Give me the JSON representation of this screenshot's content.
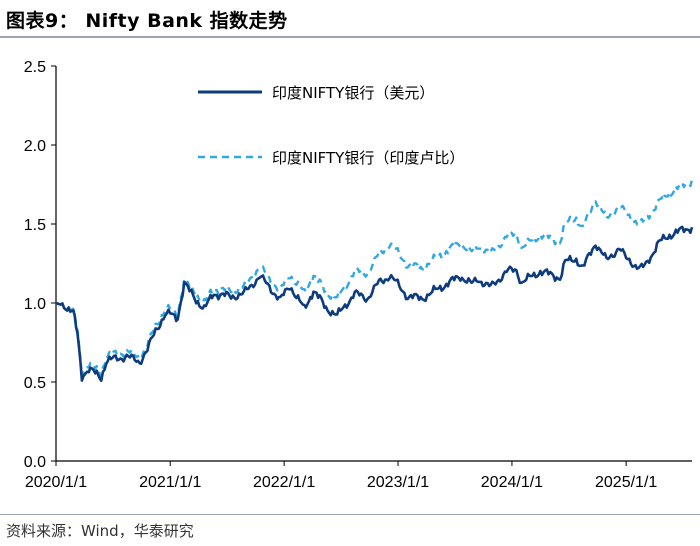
{
  "page_title": "图表9： Nifty Bank 指数走势",
  "source": "资料来源：Wind，华泰研究",
  "colors": {
    "usd": "#0d3b7e",
    "inr": "#33a8e0",
    "axis": "#000000"
  },
  "chart_data": {
    "type": "line",
    "title": "图表9： Nifty Bank 指数走势",
    "xlabel": "",
    "ylabel": "",
    "xlim": [
      "2020-01-01",
      "2025-07-31"
    ],
    "ylim": [
      0.0,
      2.5
    ],
    "y_ticks": [
      0.0,
      0.5,
      1.0,
      1.5,
      2.0,
      2.5
    ],
    "y_tick_labels": [
      "0.0",
      "0.5",
      "1.0",
      "1.5",
      "2.0",
      "2.5"
    ],
    "x_ticks": [
      "2020-01-01",
      "2021-01-01",
      "2022-01-01",
      "2023-01-01",
      "2024-01-01",
      "2025-01-01"
    ],
    "x_tick_labels": [
      "2020/1/1",
      "2021/1/1",
      "2022/1/1",
      "2023/1/1",
      "2024/1/1",
      "2025/1/1"
    ],
    "grid": false,
    "legend_position": "top-center",
    "series": [
      {
        "name": "印度NIFTY银行（美元）",
        "style": "solid",
        "points": [
          [
            "2020-01-01",
            1.0
          ],
          [
            "2020-02-01",
            0.98
          ],
          [
            "2020-02-25",
            0.94
          ],
          [
            "2020-03-10",
            0.8
          ],
          [
            "2020-03-24",
            0.54
          ],
          [
            "2020-04-15",
            0.58
          ],
          [
            "2020-05-01",
            0.56
          ],
          [
            "2020-05-25",
            0.53
          ],
          [
            "2020-06-10",
            0.63
          ],
          [
            "2020-07-10",
            0.65
          ],
          [
            "2020-08-15",
            0.66
          ],
          [
            "2020-09-25",
            0.63
          ],
          [
            "2020-10-20",
            0.7
          ],
          [
            "2020-11-15",
            0.83
          ],
          [
            "2020-12-15",
            0.92
          ],
          [
            "2021-01-01",
            0.93
          ],
          [
            "2021-01-25",
            0.91
          ],
          [
            "2021-02-15",
            1.12
          ],
          [
            "2021-03-10",
            1.06
          ],
          [
            "2021-04-20",
            0.96
          ],
          [
            "2021-05-20",
            1.06
          ],
          [
            "2021-07-15",
            1.04
          ],
          [
            "2021-08-25",
            1.06
          ],
          [
            "2021-10-15",
            1.17
          ],
          [
            "2021-11-15",
            1.1
          ],
          [
            "2021-12-20",
            1.02
          ],
          [
            "2022-01-20",
            1.11
          ],
          [
            "2022-03-07",
            0.96
          ],
          [
            "2022-04-05",
            1.08
          ],
          [
            "2022-05-15",
            0.97
          ],
          [
            "2022-06-20",
            0.92
          ],
          [
            "2022-08-15",
            1.06
          ],
          [
            "2022-09-25",
            1.03
          ],
          [
            "2022-11-01",
            1.13
          ],
          [
            "2022-12-05",
            1.17
          ],
          [
            "2022-12-31",
            1.12
          ],
          [
            "2023-02-01",
            1.04
          ],
          [
            "2023-03-20",
            1.03
          ],
          [
            "2023-05-01",
            1.08
          ],
          [
            "2023-06-15",
            1.13
          ],
          [
            "2023-07-20",
            1.17
          ],
          [
            "2023-08-25",
            1.12
          ],
          [
            "2023-09-15",
            1.15
          ],
          [
            "2023-10-25",
            1.1
          ],
          [
            "2023-12-15",
            1.2
          ],
          [
            "2024-01-15",
            1.21
          ],
          [
            "2024-02-01",
            1.13
          ],
          [
            "2024-04-01",
            1.2
          ],
          [
            "2024-06-03",
            1.16
          ],
          [
            "2024-06-20",
            1.26
          ],
          [
            "2024-07-25",
            1.28
          ],
          [
            "2024-08-15",
            1.22
          ],
          [
            "2024-09-25",
            1.38
          ],
          [
            "2024-10-30",
            1.27
          ],
          [
            "2024-12-10",
            1.35
          ],
          [
            "2025-01-01",
            1.28
          ],
          [
            "2025-02-15",
            1.22
          ],
          [
            "2025-03-01",
            1.23
          ],
          [
            "2025-04-15",
            1.38
          ],
          [
            "2025-05-20",
            1.43
          ],
          [
            "2025-06-30",
            1.46
          ],
          [
            "2025-07-31",
            1.48
          ]
        ]
      },
      {
        "name": "印度NIFTY银行（印度卢比）",
        "style": "dashed",
        "points": [
          [
            "2020-01-01",
            1.0
          ],
          [
            "2020-02-01",
            0.98
          ],
          [
            "2020-02-25",
            0.95
          ],
          [
            "2020-03-10",
            0.82
          ],
          [
            "2020-03-24",
            0.56
          ],
          [
            "2020-04-15",
            0.61
          ],
          [
            "2020-05-01",
            0.59
          ],
          [
            "2020-05-25",
            0.56
          ],
          [
            "2020-06-10",
            0.66
          ],
          [
            "2020-07-10",
            0.68
          ],
          [
            "2020-08-15",
            0.69
          ],
          [
            "2020-09-25",
            0.66
          ],
          [
            "2020-10-20",
            0.73
          ],
          [
            "2020-11-15",
            0.86
          ],
          [
            "2020-12-15",
            0.95
          ],
          [
            "2021-01-01",
            0.96
          ],
          [
            "2021-01-25",
            0.94
          ],
          [
            "2021-02-15",
            1.14
          ],
          [
            "2021-03-10",
            1.09
          ],
          [
            "2021-04-20",
            1.0
          ],
          [
            "2021-05-20",
            1.09
          ],
          [
            "2021-07-15",
            1.08
          ],
          [
            "2021-08-25",
            1.1
          ],
          [
            "2021-10-15",
            1.23
          ],
          [
            "2021-11-15",
            1.15
          ],
          [
            "2021-12-20",
            1.08
          ],
          [
            "2022-01-20",
            1.18
          ],
          [
            "2022-03-07",
            1.06
          ],
          [
            "2022-04-05",
            1.18
          ],
          [
            "2022-05-15",
            1.07
          ],
          [
            "2022-06-20",
            1.03
          ],
          [
            "2022-08-15",
            1.2
          ],
          [
            "2022-09-25",
            1.19
          ],
          [
            "2022-11-01",
            1.31
          ],
          [
            "2022-12-05",
            1.37
          ],
          [
            "2022-12-31",
            1.32
          ],
          [
            "2023-02-01",
            1.24
          ],
          [
            "2023-03-20",
            1.22
          ],
          [
            "2023-05-01",
            1.28
          ],
          [
            "2023-06-15",
            1.34
          ],
          [
            "2023-07-20",
            1.38
          ],
          [
            "2023-08-25",
            1.32
          ],
          [
            "2023-09-15",
            1.36
          ],
          [
            "2023-10-25",
            1.31
          ],
          [
            "2023-12-15",
            1.42
          ],
          [
            "2024-01-15",
            1.44
          ],
          [
            "2024-02-01",
            1.35
          ],
          [
            "2024-04-01",
            1.43
          ],
          [
            "2024-06-03",
            1.39
          ],
          [
            "2024-06-20",
            1.5
          ],
          [
            "2024-07-25",
            1.54
          ],
          [
            "2024-08-15",
            1.47
          ],
          [
            "2024-09-25",
            1.66
          ],
          [
            "2024-10-30",
            1.53
          ],
          [
            "2024-12-10",
            1.62
          ],
          [
            "2025-01-01",
            1.56
          ],
          [
            "2025-02-15",
            1.5
          ],
          [
            "2025-03-01",
            1.52
          ],
          [
            "2025-04-15",
            1.64
          ],
          [
            "2025-05-20",
            1.7
          ],
          [
            "2025-06-30",
            1.74
          ],
          [
            "2025-07-31",
            1.78
          ]
        ]
      }
    ]
  }
}
